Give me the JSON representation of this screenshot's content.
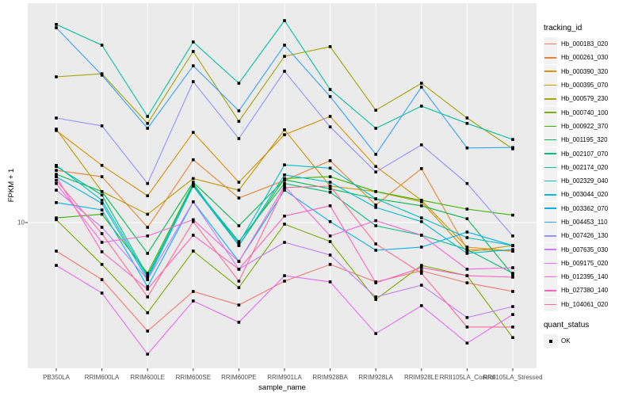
{
  "figure": {
    "xlabel": "sample_name",
    "ylabel": "FPKM + 1",
    "y_tick_label": "10"
  },
  "legend": {
    "tracking_title": "tracking_id",
    "quant_title": "quant_status",
    "quant_ok_label": "OK"
  },
  "colors": {
    "panel_bg": "#EBEBEB",
    "grid": "#FFFFFF",
    "tick_mark": "#333333",
    "tick_text": "#4D4D4D",
    "legend_key_bg": "#F2F2F2",
    "point": "#000000"
  },
  "chart_data": {
    "type": "line",
    "title": "",
    "xlabel": "sample_name",
    "ylabel": "FPKM + 1",
    "y_scale": "log10",
    "y_ticks": [
      10
    ],
    "ylim": [
      2.4,
      90
    ],
    "grid": true,
    "legend_position": "right",
    "point_marker": "black-square",
    "quant_status_legend": {
      "title": "quant_status",
      "entries": [
        "OK"
      ]
    },
    "categories": [
      "PB350LA",
      "RRIM600LA",
      "RRIM600LE",
      "RRIM600SE",
      "RRIM600PE",
      "RRIM901LA",
      "RRIM928BA",
      "RRIM928LA",
      "RRIM928LE",
      "RRII105LA_Control",
      "RRII105LA_Stressed"
    ],
    "series": [
      {
        "name": "Hb_000183_020",
        "color": "#F8766D",
        "values": [
          7.44,
          5.53,
          3.24,
          4.89,
          4.25,
          5.44,
          6.47,
          5.4,
          6.06,
          5.35,
          4.89
        ]
      },
      {
        "name": "Hb_000261_030",
        "color": "#EA8331",
        "values": [
          17.2,
          16.1,
          9.52,
          19.2,
          12.9,
          15.5,
          19.0,
          12.0,
          17.5,
          7.56,
          7.44
        ]
      },
      {
        "name": "Hb_000390_320",
        "color": "#D89000",
        "values": [
          26.0,
          18.1,
          13.2,
          25.5,
          15.2,
          24.9,
          30.1,
          17.9,
          12.6,
          7.75,
          7.44
        ]
      },
      {
        "name": "Hb_000395_070",
        "color": "#C09B00",
        "values": [
          26.4,
          13.8,
          10.9,
          15.8,
          14.0,
          26.2,
          14.6,
          13.8,
          12.4,
          7.38,
          7.88
        ]
      },
      {
        "name": "Hb_000579_230",
        "color": "#A3A500",
        "values": [
          45.4,
          46.9,
          28.0,
          59.1,
          28.6,
          56.2,
          62.1,
          32.1,
          42.5,
          29.6,
          21.5
        ]
      },
      {
        "name": "Hb_000740_100",
        "color": "#7CAE00",
        "values": [
          10.3,
          6.47,
          3.92,
          7.44,
          5.09,
          9.84,
          8.21,
          4.5,
          6.41,
          5.76,
          3.03
        ]
      },
      {
        "name": "Hb_000922_370",
        "color": "#39B600",
        "values": [
          10.5,
          10.9,
          5.91,
          15.0,
          7.88,
          15.8,
          16.1,
          13.8,
          12.6,
          11.5,
          10.8
        ]
      },
      {
        "name": "Hb_001195_320",
        "color": "#00BB4E",
        "values": [
          16.5,
          13.8,
          7.26,
          15.2,
          9.68,
          15.6,
          14.2,
          12.8,
          11.9,
          10.4,
          5.81
        ]
      },
      {
        "name": "Hb_002107_070",
        "color": "#00BF7D",
        "values": [
          17.9,
          13.3,
          5.76,
          14.7,
          8.21,
          15.0,
          13.7,
          9.68,
          8.77,
          7.56,
          5.91
        ]
      },
      {
        "name": "Hb_002174_020",
        "color": "#00C1A3",
        "values": [
          78.2,
          63.1,
          30.1,
          65.2,
          42.5,
          81.4,
          39.8,
          26.6,
          33.5,
          28.0,
          23.7
        ]
      },
      {
        "name": "Hb_002329_040",
        "color": "#00BFC4",
        "values": [
          18.1,
          12.6,
          5.67,
          14.8,
          8.07,
          18.2,
          17.6,
          12.8,
          10.5,
          8.55,
          7.88
        ]
      },
      {
        "name": "Hb_003044_020",
        "color": "#00BAE0",
        "values": [
          16.1,
          12.2,
          5.53,
          14.6,
          7.88,
          16.4,
          15.2,
          11.7,
          10.1,
          7.26,
          7.56
        ]
      },
      {
        "name": "Hb_003362_070",
        "color": "#00B0F6",
        "values": [
          12.3,
          11.4,
          5.14,
          12.4,
          6.68,
          14.0,
          10.1,
          7.5,
          7.75,
          9.06,
          7.88
        ]
      },
      {
        "name": "Hb_004453_110",
        "color": "#35A2FF",
        "values": [
          75.6,
          46.2,
          26.6,
          50.9,
          31.9,
          63.1,
          37.0,
          20.3,
          40.8,
          21.7,
          21.8
        ]
      },
      {
        "name": "Hb_007426_130",
        "color": "#9590FF",
        "values": [
          29.6,
          27.3,
          15.0,
          43.2,
          23.9,
          48.1,
          27.0,
          16.9,
          22.4,
          15.0,
          8.7
        ]
      },
      {
        "name": "Hb_007635_030",
        "color": "#C77CFF",
        "values": [
          14.0,
          9.52,
          5.53,
          12.4,
          6.16,
          8.14,
          7.14,
          4.62,
          5.22,
          3.73,
          4.18
        ]
      },
      {
        "name": "Hb_009175_020",
        "color": "#E76BF3",
        "values": [
          6.41,
          4.81,
          2.55,
          4.43,
          3.55,
          5.76,
          5.4,
          3.16,
          4.22,
          2.86,
          3.85
        ]
      },
      {
        "name": "Hb_012395_140",
        "color": "#FA62DB",
        "values": [
          15.0,
          8.14,
          8.7,
          10.3,
          6.68,
          14.6,
          8.7,
          10.2,
          8.77,
          6.16,
          6.26
        ]
      },
      {
        "name": "Hb_027380_140",
        "color": "#FF62BC",
        "values": [
          16.1,
          7.38,
          5.01,
          8.77,
          6.16,
          10.7,
          11.9,
          5.35,
          6.26,
          5.76,
          5.67
        ]
      },
      {
        "name": "Hb_104061_020",
        "color": "#FF6A98",
        "values": [
          15.5,
          8.91,
          4.62,
          10.1,
          5.44,
          14.4,
          14.6,
          8.01,
          5.91,
          3.38,
          3.38
        ]
      }
    ]
  }
}
